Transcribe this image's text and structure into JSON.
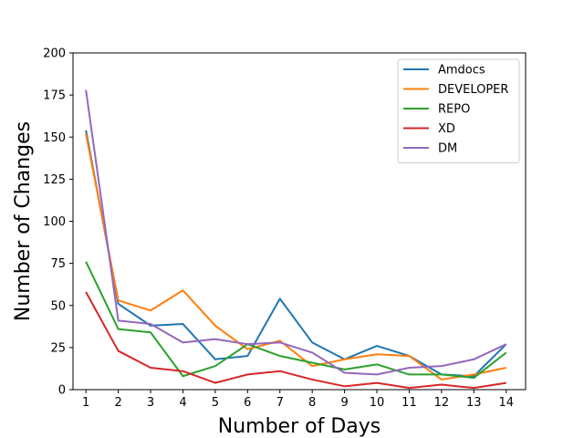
{
  "chart_data": {
    "type": "line",
    "xlabel": "Number of Days",
    "ylabel": "Number of Changes",
    "x": [
      1,
      2,
      3,
      4,
      5,
      6,
      7,
      8,
      9,
      10,
      11,
      12,
      13,
      14
    ],
    "xlim": [
      0.6,
      14.6
    ],
    "ylim": [
      0,
      200
    ],
    "yticks": [
      0,
      25,
      50,
      75,
      100,
      125,
      150,
      175,
      200
    ],
    "grid": false,
    "legend_position": "top-right",
    "series": [
      {
        "name": "Amdocs",
        "color": "#1f77b4",
        "values": [
          154,
          51,
          38,
          39,
          18,
          20,
          54,
          28,
          18,
          26,
          20,
          9,
          8,
          27
        ]
      },
      {
        "name": "DEVELOPER",
        "color": "#ff7f0e",
        "values": [
          152,
          53,
          47,
          59,
          38,
          24,
          29,
          14,
          18,
          21,
          20,
          6,
          9,
          13
        ]
      },
      {
        "name": "REPO",
        "color": "#2ca02c",
        "values": [
          76,
          36,
          34,
          8,
          14,
          27,
          20,
          16,
          12,
          15,
          9,
          9,
          7,
          22
        ]
      },
      {
        "name": "XD",
        "color": "#d62728",
        "values": [
          58,
          23,
          13,
          11,
          4,
          9,
          11,
          6,
          2,
          4,
          1,
          3,
          1,
          4
        ]
      },
      {
        "name": "DM",
        "color": "#9467bd",
        "values": [
          178,
          41,
          39,
          28,
          30,
          27,
          28,
          22,
          10,
          9,
          13,
          14,
          18,
          27
        ]
      }
    ]
  }
}
